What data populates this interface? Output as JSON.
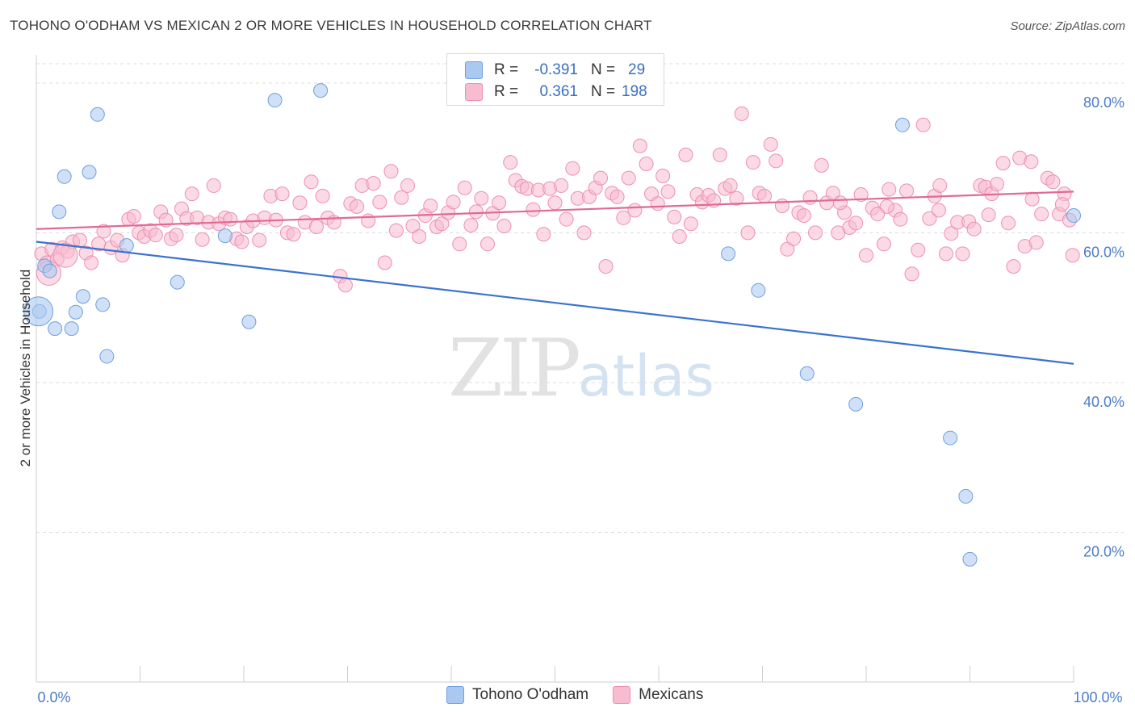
{
  "title": "TOHONO O'ODHAM VS MEXICAN 2 OR MORE VEHICLES IN HOUSEHOLD CORRELATION CHART",
  "source": "Source: ZipAtlas.com",
  "watermark": {
    "zip": "ZIP",
    "atlas": "atlas"
  },
  "legend": {
    "rows": [
      {
        "r_label": "R =",
        "r_value": "-0.391",
        "n_label": "N =",
        "n_value": "29",
        "color": "#aac8f0",
        "border": "#6e9fe0"
      },
      {
        "r_label": "R =",
        "r_value": "0.361",
        "n_label": "N =",
        "n_value": "198",
        "color": "#f8bcd0",
        "border": "#ee8fae"
      }
    ]
  },
  "bottom_legend": [
    {
      "label": "Tohono O'odham",
      "color": "#aac8f0",
      "border": "#6e9fe0"
    },
    {
      "label": "Mexicans",
      "color": "#f8bcd0",
      "border": "#ee8fae"
    }
  ],
  "chart_data": {
    "type": "scatter",
    "ylabel": "2 or more Vehicles in Household",
    "xlabel": "",
    "xlim": [
      0,
      100
    ],
    "ylim": [
      0,
      83
    ],
    "x_tick_labels": [
      {
        "value": 0,
        "label": "0.0%"
      },
      {
        "value": 100,
        "label": "100.0%"
      }
    ],
    "y_ticks": [
      {
        "value": 20,
        "label": "20.0%"
      },
      {
        "value": 40,
        "label": "40.0%"
      },
      {
        "value": 60,
        "label": "60.0%"
      },
      {
        "value": 80,
        "label": "80.0%"
      }
    ],
    "grid": "horizontal dashed",
    "series": [
      {
        "name": "Tohono O'odham",
        "color": "#aac8f0",
        "stroke": "#6e9fe0",
        "line_color": "#3b72d0",
        "trend": {
          "x": [
            0,
            100
          ],
          "y": [
            58.8,
            42.5
          ]
        },
        "points": [
          [
            0.3,
            49.5
          ],
          [
            0.8,
            55.6
          ],
          [
            1.3,
            54.9
          ],
          [
            1.8,
            47.2
          ],
          [
            2.2,
            62.8
          ],
          [
            2.7,
            67.5
          ],
          [
            3.4,
            47.2
          ],
          [
            3.8,
            49.4
          ],
          [
            4.5,
            51.5
          ],
          [
            5.1,
            68.1
          ],
          [
            5.9,
            75.8
          ],
          [
            6.4,
            50.4
          ],
          [
            6.8,
            43.5
          ],
          [
            8.7,
            58.3
          ],
          [
            13.6,
            53.4
          ],
          [
            18.2,
            59.6
          ],
          [
            20.5,
            48.1
          ],
          [
            23.0,
            77.7
          ],
          [
            27.4,
            79.0
          ],
          [
            66.7,
            57.2
          ],
          [
            69.6,
            52.3
          ],
          [
            74.3,
            41.2
          ],
          [
            79.0,
            37.1
          ],
          [
            83.5,
            74.4
          ],
          [
            88.1,
            32.6
          ],
          [
            90.0,
            16.4
          ],
          [
            89.6,
            24.8
          ],
          [
            100.0,
            62.3
          ]
        ],
        "large_point": [
          0.2,
          49.5
        ]
      },
      {
        "name": "Mexicans",
        "color": "#f8bcd0",
        "stroke": "#ee8fae",
        "line_color": "#e06a95",
        "trend": {
          "x": [
            0,
            100
          ],
          "y": [
            60.5,
            65.5
          ]
        },
        "points": [
          [
            0.5,
            57.2
          ],
          [
            1.0,
            56.0
          ],
          [
            1.5,
            57.8
          ],
          [
            2.0,
            56.5
          ],
          [
            2.5,
            58.0
          ],
          [
            3.0,
            57.5
          ],
          [
            3.5,
            58.8
          ],
          [
            4.2,
            59.0
          ],
          [
            4.8,
            57.3
          ],
          [
            5.3,
            56.0
          ],
          [
            6.0,
            58.5
          ],
          [
            6.5,
            60.2
          ],
          [
            7.2,
            58.0
          ],
          [
            7.8,
            59.0
          ],
          [
            8.3,
            57.0
          ],
          [
            8.9,
            61.8
          ],
          [
            9.4,
            62.2
          ],
          [
            9.9,
            60.0
          ],
          [
            10.4,
            59.5
          ],
          [
            11.0,
            60.3
          ],
          [
            11.5,
            59.7
          ],
          [
            12.0,
            62.8
          ],
          [
            12.5,
            61.7
          ],
          [
            13.0,
            59.2
          ],
          [
            13.5,
            59.7
          ],
          [
            14.0,
            63.2
          ],
          [
            14.5,
            61.9
          ],
          [
            15.0,
            65.2
          ],
          [
            15.5,
            62.0
          ],
          [
            16.0,
            59.1
          ],
          [
            16.6,
            61.4
          ],
          [
            17.1,
            66.3
          ],
          [
            17.6,
            61.2
          ],
          [
            18.2,
            62.0
          ],
          [
            18.7,
            61.8
          ],
          [
            19.3,
            59.2
          ],
          [
            19.8,
            58.8
          ],
          [
            20.3,
            60.8
          ],
          [
            20.9,
            61.6
          ],
          [
            21.5,
            59.0
          ],
          [
            22.0,
            62.0
          ],
          [
            22.6,
            64.9
          ],
          [
            23.1,
            61.7
          ],
          [
            23.7,
            65.2
          ],
          [
            24.2,
            60.0
          ],
          [
            24.8,
            59.8
          ],
          [
            25.4,
            64.0
          ],
          [
            25.9,
            61.4
          ],
          [
            26.5,
            66.8
          ],
          [
            27.0,
            60.8
          ],
          [
            27.6,
            64.9
          ],
          [
            28.1,
            62.0
          ],
          [
            28.7,
            61.4
          ],
          [
            29.3,
            54.2
          ],
          [
            29.8,
            53.0
          ],
          [
            30.3,
            63.9
          ],
          [
            30.9,
            63.5
          ],
          [
            31.4,
            66.3
          ],
          [
            32.0,
            61.6
          ],
          [
            32.5,
            66.6
          ],
          [
            33.1,
            64.1
          ],
          [
            33.6,
            56.0
          ],
          [
            34.2,
            68.2
          ],
          [
            34.7,
            60.3
          ],
          [
            35.2,
            64.7
          ],
          [
            35.8,
            66.3
          ],
          [
            36.3,
            60.9
          ],
          [
            36.9,
            59.5
          ],
          [
            37.5,
            62.3
          ],
          [
            38.0,
            63.6
          ],
          [
            38.6,
            60.8
          ],
          [
            39.1,
            61.2
          ],
          [
            39.7,
            62.7
          ],
          [
            40.2,
            64.1
          ],
          [
            40.8,
            58.5
          ],
          [
            41.3,
            66.0
          ],
          [
            41.9,
            61.0
          ],
          [
            42.4,
            62.8
          ],
          [
            42.9,
            64.6
          ],
          [
            43.5,
            58.5
          ],
          [
            44.0,
            62.6
          ],
          [
            44.6,
            64.0
          ],
          [
            45.1,
            60.9
          ],
          [
            45.7,
            69.4
          ],
          [
            46.2,
            67.0
          ],
          [
            46.8,
            66.2
          ],
          [
            47.3,
            65.9
          ],
          [
            47.9,
            63.1
          ],
          [
            48.4,
            65.7
          ],
          [
            48.9,
            59.8
          ],
          [
            49.5,
            65.9
          ],
          [
            50.0,
            64.0
          ],
          [
            50.6,
            66.3
          ],
          [
            51.1,
            61.8
          ],
          [
            51.7,
            68.6
          ],
          [
            52.2,
            64.6
          ],
          [
            52.8,
            60.0
          ],
          [
            53.3,
            64.8
          ],
          [
            53.9,
            66.0
          ],
          [
            54.4,
            67.3
          ],
          [
            54.9,
            55.5
          ],
          [
            55.5,
            65.3
          ],
          [
            56.0,
            64.8
          ],
          [
            56.6,
            62.0
          ],
          [
            57.1,
            67.3
          ],
          [
            57.7,
            63.0
          ],
          [
            58.2,
            71.6
          ],
          [
            58.8,
            69.2
          ],
          [
            59.3,
            65.2
          ],
          [
            59.9,
            63.9
          ],
          [
            60.4,
            67.6
          ],
          [
            60.9,
            65.5
          ],
          [
            61.5,
            62.1
          ],
          [
            62.0,
            59.5
          ],
          [
            62.6,
            70.4
          ],
          [
            63.1,
            61.2
          ],
          [
            63.7,
            65.1
          ],
          [
            64.2,
            64.1
          ],
          [
            64.8,
            65.0
          ],
          [
            65.3,
            64.3
          ],
          [
            65.9,
            70.4
          ],
          [
            66.4,
            65.9
          ],
          [
            66.9,
            66.3
          ],
          [
            67.5,
            64.6
          ],
          [
            68.0,
            75.9
          ],
          [
            68.6,
            60.0
          ],
          [
            69.1,
            69.4
          ],
          [
            69.7,
            65.3
          ],
          [
            70.2,
            64.9
          ],
          [
            70.8,
            71.8
          ],
          [
            71.3,
            69.6
          ],
          [
            71.9,
            63.6
          ],
          [
            72.4,
            57.8
          ],
          [
            73.0,
            59.2
          ],
          [
            73.5,
            62.7
          ],
          [
            74.0,
            62.3
          ],
          [
            74.6,
            64.7
          ],
          [
            75.1,
            60.0
          ],
          [
            75.7,
            69.0
          ],
          [
            76.2,
            64.0
          ],
          [
            76.8,
            65.3
          ],
          [
            77.3,
            60.0
          ],
          [
            77.9,
            62.7
          ],
          [
            78.4,
            60.7
          ],
          [
            79.0,
            61.3
          ],
          [
            79.5,
            65.1
          ],
          [
            80.0,
            57.0
          ],
          [
            80.6,
            63.3
          ],
          [
            81.1,
            62.5
          ],
          [
            81.7,
            58.5
          ],
          [
            82.2,
            65.8
          ],
          [
            82.8,
            63.0
          ],
          [
            83.3,
            61.8
          ],
          [
            83.9,
            65.6
          ],
          [
            84.4,
            54.5
          ],
          [
            85.0,
            57.7
          ],
          [
            85.5,
            74.4
          ],
          [
            86.1,
            61.9
          ],
          [
            86.6,
            64.9
          ],
          [
            87.1,
            66.3
          ],
          [
            87.7,
            57.2
          ],
          [
            88.2,
            59.9
          ],
          [
            88.8,
            61.4
          ],
          [
            89.3,
            57.2
          ],
          [
            89.9,
            61.5
          ],
          [
            90.4,
            60.5
          ],
          [
            91.0,
            66.3
          ],
          [
            91.5,
            66.1
          ],
          [
            92.1,
            65.2
          ],
          [
            92.6,
            66.5
          ],
          [
            93.2,
            69.3
          ],
          [
            93.7,
            61.3
          ],
          [
            94.2,
            55.5
          ],
          [
            94.8,
            70.0
          ],
          [
            95.3,
            58.2
          ],
          [
            95.9,
            69.5
          ],
          [
            96.4,
            58.7
          ],
          [
            96.9,
            62.5
          ],
          [
            97.5,
            67.3
          ],
          [
            98.0,
            66.8
          ],
          [
            98.6,
            62.5
          ],
          [
            99.1,
            65.2
          ],
          [
            99.6,
            61.7
          ],
          [
            99.9,
            57.0
          ],
          [
            98.9,
            63.8
          ],
          [
            96.0,
            64.5
          ],
          [
            91.8,
            62.4
          ],
          [
            87.0,
            63.0
          ],
          [
            82.0,
            63.5
          ],
          [
            77.5,
            64.0
          ]
        ],
        "large_points": [
          [
            1.2,
            54.6
          ],
          [
            2.8,
            57.0
          ]
        ]
      }
    ]
  }
}
